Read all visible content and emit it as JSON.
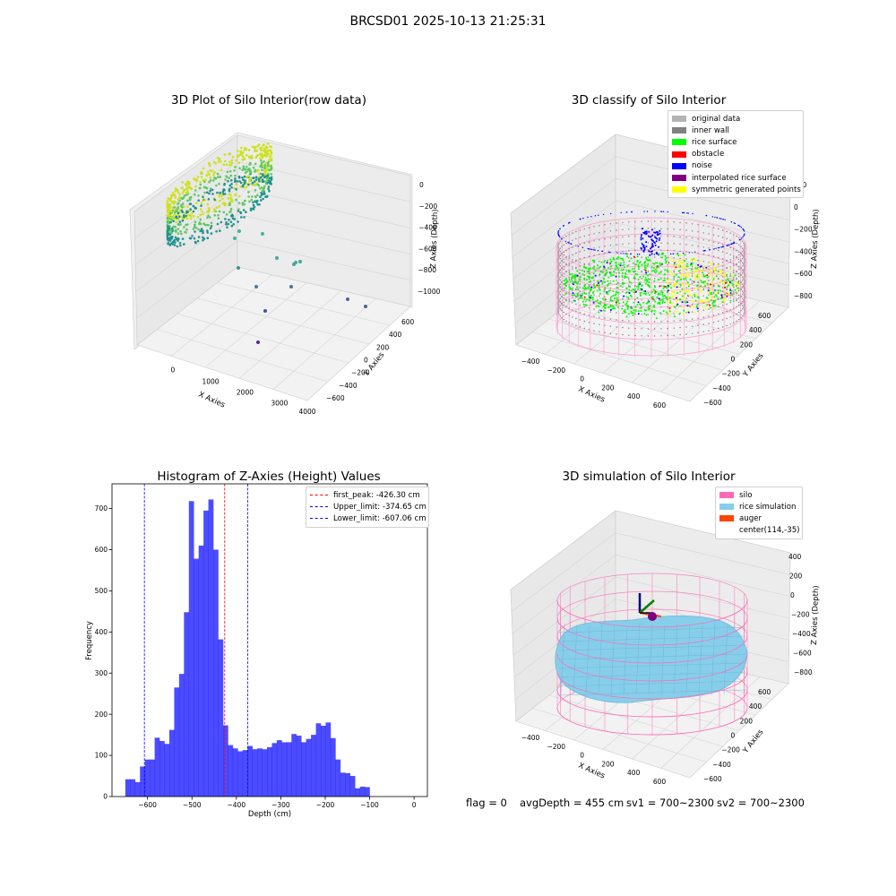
{
  "figure": {
    "suptitle": "BRCSD01 2025-10-13 21:25:31"
  },
  "panel_raw": {
    "title": "3D Plot of Silo Interior(row data)",
    "xlabel": "X Axies",
    "ylabel": "Y Axies",
    "zlabel": "Z Axies (Depth)",
    "xticks": [
      "0",
      "1000",
      "2000",
      "3000",
      "4000"
    ],
    "yticks": [
      "600",
      "400",
      "200",
      "0",
      "−200",
      "−400",
      "−600"
    ],
    "zticks": [
      "0",
      "−200",
      "−400",
      "−600",
      "−800",
      "−1000"
    ]
  },
  "panel_classify": {
    "title": "3D classify of Silo Interior",
    "xlabel": "X Axies",
    "ylabel": "Y Axies",
    "zlabel": "Z Axies (Depth)",
    "xticks": [
      "−400",
      "−200",
      "0",
      "200",
      "400",
      "600"
    ],
    "yticks": [
      "600",
      "400",
      "200",
      "0",
      "−200",
      "−400",
      "−600"
    ],
    "zticks": [
      "200",
      "0",
      "−200",
      "−400",
      "−600",
      "−800"
    ],
    "legend": [
      {
        "label": "original data",
        "color": "#b3b3b3"
      },
      {
        "label": "inner wall",
        "color": "#808080"
      },
      {
        "label": "rice surface",
        "color": "#00ff00"
      },
      {
        "label": "obstacle",
        "color": "#ff0000"
      },
      {
        "label": "noise",
        "color": "#0000ff"
      },
      {
        "label": "interpolated rice surface",
        "color": "#800080"
      },
      {
        "label": "symmetric generated points",
        "color": "#ffff00"
      }
    ]
  },
  "panel_sim": {
    "title": "3D simulation of Silo Interior",
    "xlabel": "X Axies",
    "ylabel": "Y Axies",
    "zlabel": "Z Axies (Depth)",
    "xticks": [
      "−400",
      "−200",
      "0",
      "200",
      "400",
      "600"
    ],
    "yticks": [
      "600",
      "400",
      "200",
      "0",
      "−200",
      "−400",
      "−600"
    ],
    "zticks": [
      "400",
      "200",
      "0",
      "−200",
      "−400",
      "−600",
      "−800"
    ],
    "legend": [
      {
        "label": "silo",
        "color": "#ff69b4"
      },
      {
        "label": "rice simulation",
        "color": "#87ceeb"
      },
      {
        "label": "auger",
        "color": "#ff4500"
      },
      {
        "label": "center(114,-35)",
        "color": ""
      }
    ]
  },
  "status": {
    "flag": "flag = 0",
    "avg_depth": "avgDepth = 455 cm",
    "sv1": "sv1 = 700~2300",
    "sv2": "sv2 = 700~2300"
  },
  "chart_data": {
    "type": "bar",
    "title": "Histogram of Z-Axies (Height) Values",
    "xlabel": "Depth (cm)",
    "ylabel": "Frequency",
    "xlim": [
      -680,
      30
    ],
    "ylim": [
      0,
      760
    ],
    "xticks": [
      -600,
      -500,
      -400,
      -300,
      -200,
      -100,
      0
    ],
    "yticks": [
      0,
      100,
      200,
      300,
      400,
      500,
      600,
      700
    ],
    "bin_start": -650,
    "bin_width": 11,
    "bar_color": "#0000ff",
    "values": [
      42,
      42,
      35,
      73,
      90,
      90,
      143,
      135,
      128,
      162,
      265,
      298,
      448,
      718,
      578,
      610,
      695,
      722,
      600,
      382,
      173,
      125,
      117,
      110,
      113,
      123,
      115,
      117,
      115,
      120,
      130,
      137,
      132,
      132,
      152,
      148,
      132,
      140,
      150,
      178,
      172,
      180,
      142,
      90,
      58,
      57,
      50,
      20,
      24,
      23
    ],
    "reference_lines": [
      {
        "name": "first_peak: -426.30 cm",
        "x": -426.3,
        "color": "#ff0000"
      },
      {
        "name": "Upper_limit: -374.65 cm",
        "x": -374.65,
        "color": "#0000ff"
      },
      {
        "name": "Lower_limit: -607.06 cm",
        "x": -607.06,
        "color": "#0000ff"
      }
    ]
  }
}
